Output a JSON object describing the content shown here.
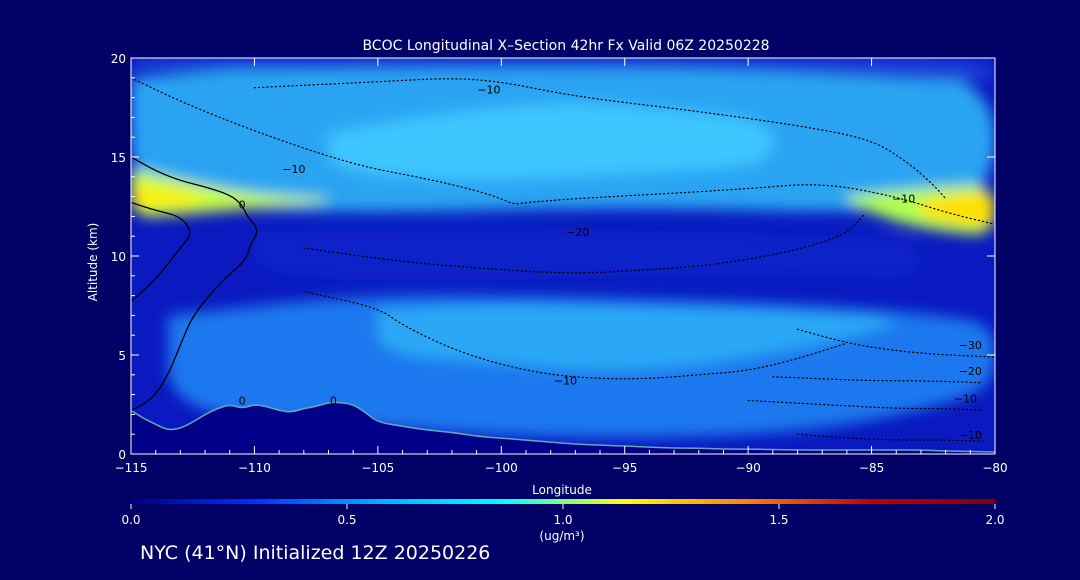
{
  "chart_data": {
    "type": "heatmap",
    "title": "BCOC Longitudinal X–Section 42hr  Fx Valid 06Z 20250228",
    "xlabel": "Longitude",
    "ylabel": "Altitude (km)",
    "xlim": [
      -115,
      -80
    ],
    "ylim": [
      0,
      20
    ],
    "x_ticks": [
      -115,
      -110,
      -105,
      -100,
      -95,
      -90,
      -85,
      -80
    ],
    "x_tick_labels": [
      "−115",
      "−110",
      "−105",
      "−100",
      "−95",
      "−90",
      "−85",
      "−80"
    ],
    "y_ticks": [
      0,
      5,
      10,
      15,
      20
    ],
    "y_tick_labels": [
      "0",
      "5",
      "10",
      "15",
      "20"
    ],
    "grid": false,
    "colorbar": {
      "min": 0.0,
      "max": 2.0,
      "ticks": [
        0.0,
        0.5,
        1.0,
        1.5,
        2.0
      ],
      "tick_labels": [
        "0.0",
        "0.5",
        "1.0",
        "1.5",
        "2.0"
      ],
      "unit_label": "(ug/m³)",
      "colors": [
        "#000080",
        "#0030ff",
        "#00b0ff",
        "#00ffff",
        "#ffff00",
        "#ff8000",
        "#c00000",
        "#800000"
      ]
    },
    "fill_regions": [
      {
        "name": "lower-layer",
        "value": 0.45,
        "color": "#1a78ee",
        "lon": [
          -113.5,
          -106,
          -100,
          -93,
          -87,
          -82,
          -80
        ],
        "alt_bottom": [
          2.0,
          1.5,
          0.9,
          0.8,
          1.2,
          2.5,
          3.5
        ],
        "alt_top": [
          7.0,
          8.0,
          8.0,
          7.8,
          7.5,
          7.0,
          6.5
        ]
      },
      {
        "name": "lower-core",
        "value": 0.65,
        "color": "#2aa8f6",
        "lon": [
          -105,
          -100,
          -97,
          -93,
          -88,
          -84
        ],
        "alt_bottom": [
          5.0,
          4.6,
          4.2,
          4.3,
          5.3,
          6.5
        ],
        "alt_top": [
          7.3,
          7.6,
          7.5,
          7.4,
          7.2,
          6.9
        ]
      },
      {
        "name": "mid-minimum",
        "value": 0.15,
        "color": "#0a22c8",
        "lon": [
          -110,
          -104,
          -99,
          -95,
          -91,
          -86,
          -83
        ],
        "alt_bottom": [
          9.0,
          8.7,
          8.8,
          9.0,
          9.0,
          8.9,
          8.8
        ],
        "alt_top": [
          11.2,
          11.3,
          11.4,
          11.3,
          11.2,
          11.0,
          10.8
        ]
      },
      {
        "name": "upper-layer",
        "value": 0.6,
        "color": "#2aa4f2",
        "lon": [
          -115,
          -110,
          -104,
          -98,
          -92,
          -86,
          -80
        ],
        "alt_bottom": [
          13.0,
          12.3,
          12.2,
          12.4,
          12.4,
          12.2,
          12.6
        ],
        "alt_top": [
          19.0,
          19.5,
          19.8,
          20.0,
          20.0,
          19.7,
          19.0
        ]
      },
      {
        "name": "upper-layer-light",
        "value": 0.75,
        "color": "#3cc6ff",
        "lon": [
          -107,
          -102,
          -97,
          -93,
          -89
        ],
        "alt_bottom": [
          14.3,
          13.8,
          14.0,
          14.3,
          14.6
        ],
        "alt_top": [
          16.2,
          17.3,
          17.8,
          17.4,
          16.8
        ]
      },
      {
        "name": "plume-west",
        "value": 0.95,
        "color": "#c8ff40",
        "lon": [
          -115,
          -113,
          -111,
          -109,
          -107
        ],
        "alt_bottom": [
          11.9,
          12.1,
          12.3,
          12.5,
          12.7
        ],
        "alt_top": [
          14.4,
          13.8,
          13.3,
          13.0,
          12.9
        ]
      },
      {
        "name": "plume-west-core",
        "value": 1.1,
        "color": "#ffee00",
        "lon": [
          -115,
          -113.5,
          -112
        ],
        "alt_bottom": [
          12.4,
          12.5,
          12.7
        ],
        "alt_top": [
          13.6,
          13.3,
          13.0
        ]
      },
      {
        "name": "plume-east",
        "value": 0.95,
        "color": "#b4ff50",
        "lon": [
          -86,
          -84,
          -82,
          -80
        ],
        "alt_bottom": [
          12.7,
          11.7,
          11.2,
          11.0
        ],
        "alt_top": [
          13.0,
          13.3,
          13.5,
          13.6
        ]
      },
      {
        "name": "plume-east-core",
        "value": 1.1,
        "color": "#ffe000",
        "lon": [
          -83,
          -81.5,
          -80
        ],
        "alt_bottom": [
          12.0,
          11.6,
          11.4
        ],
        "alt_top": [
          12.8,
          13.1,
          13.3
        ]
      },
      {
        "name": "top-band",
        "value": 0.2,
        "color": "#1a40d8",
        "lon": [
          -115,
          -100,
          -90,
          -80
        ],
        "alt_bottom": [
          19.3,
          19.5,
          19.4,
          18.6
        ],
        "alt_top": [
          20.0,
          20.0,
          20.0,
          20.0
        ]
      }
    ],
    "terrain": {
      "lon": [
        -115,
        -114.5,
        -114,
        -113.5,
        -113,
        -112.5,
        -112,
        -111.5,
        -111,
        -110.5,
        -110,
        -109.5,
        -109,
        -108.5,
        -108,
        -107.5,
        -107,
        -106.5,
        -106,
        -105.5,
        -105,
        -104,
        -103,
        -102,
        -101,
        -100,
        -99,
        -98,
        -97,
        -96,
        -95,
        -94,
        -93,
        -92,
        -91,
        -90,
        -89,
        -88,
        -87,
        -86,
        -85,
        -84,
        -83,
        -82,
        -81,
        -80
      ],
      "alt": [
        2.2,
        1.8,
        1.5,
        1.2,
        1.3,
        1.6,
        2.0,
        2.3,
        2.5,
        2.3,
        2.5,
        2.4,
        2.2,
        2.1,
        2.3,
        2.4,
        2.6,
        2.6,
        2.5,
        2.1,
        1.6,
        1.4,
        1.2,
        1.1,
        0.9,
        0.8,
        0.7,
        0.6,
        0.5,
        0.45,
        0.4,
        0.35,
        0.3,
        0.3,
        0.25,
        0.25,
        0.22,
        0.2,
        0.2,
        0.2,
        0.2,
        0.2,
        0.2,
        0.15,
        0.12,
        0.1
      ]
    },
    "temperature_contours": [
      {
        "label": "0",
        "style": "solid",
        "lon": [
          -115,
          -114,
          -113,
          -112,
          -111,
          -110.5,
          -110.3,
          -109.8,
          -110.2,
          -110.3,
          -110.8,
          -111.5,
          -112.5,
          -113.0,
          -113.5,
          -114,
          -114.5,
          -115
        ],
        "alt": [
          15.0,
          14.3,
          13.8,
          13.5,
          13.1,
          12.6,
          12.0,
          11.3,
          10.5,
          9.9,
          9.3,
          8.5,
          7.0,
          5.5,
          4.0,
          3.0,
          2.5,
          2.2
        ]
      },
      {
        "label": "0",
        "style": "solid",
        "lon": [
          -115,
          -114,
          -113,
          -112.5,
          -113.0,
          -114.0,
          -115
        ],
        "alt": [
          12.7,
          12.3,
          12.0,
          11.2,
          10.4,
          8.8,
          7.7
        ]
      },
      {
        "label": "−10",
        "style": "dotted",
        "lon": [
          -115,
          -113,
          -110,
          -106,
          -103,
          -101,
          -100,
          -99.5,
          -99,
          -97,
          -94,
          -90,
          -87,
          -84,
          -82,
          -80
        ],
        "alt": [
          19.0,
          17.8,
          16.3,
          14.6,
          13.9,
          13.3,
          12.9,
          12.6,
          12.7,
          12.9,
          13.1,
          13.4,
          13.7,
          13.0,
          12.2,
          11.6
        ]
      },
      {
        "label": "−10",
        "style": "dotted",
        "lon": [
          -110,
          -105,
          -102,
          -100,
          -98,
          -96,
          -92,
          -88,
          -85,
          -83.5,
          -82.5,
          -82.0
        ],
        "alt": [
          18.5,
          18.8,
          19.0,
          18.8,
          18.3,
          17.9,
          17.3,
          16.6,
          15.9,
          14.7,
          13.6,
          12.9
        ]
      },
      {
        "label": "−20",
        "style": "dotted",
        "lon": [
          -108,
          -104,
          -100,
          -97,
          -94,
          -91,
          -88,
          -86,
          -85.3
        ],
        "alt": [
          10.4,
          9.7,
          9.3,
          9.1,
          9.3,
          9.6,
          10.3,
          11.1,
          12.1
        ]
      },
      {
        "label": "−10",
        "style": "dotted",
        "lon": [
          -108,
          -105,
          -104,
          -102,
          -100,
          -98,
          -96,
          -94,
          -92,
          -90,
          -88,
          -86
        ],
        "alt": [
          8.2,
          7.4,
          6.5,
          5.3,
          4.5,
          4.0,
          3.8,
          3.8,
          4.0,
          4.2,
          4.8,
          5.6
        ]
      },
      {
        "label": "−30",
        "style": "dotted",
        "lon": [
          -88,
          -86,
          -84,
          -82,
          -80
        ],
        "alt": [
          6.3,
          5.6,
          5.2,
          5.0,
          4.9
        ]
      },
      {
        "label": "−20",
        "style": "dotted",
        "lon": [
          -89,
          -87,
          -85,
          -83,
          -80.5
        ],
        "alt": [
          3.9,
          3.8,
          3.7,
          3.7,
          3.6
        ]
      },
      {
        "label": "−10",
        "style": "dotted",
        "lon": [
          -90,
          -87,
          -84,
          -82,
          -80.5
        ],
        "alt": [
          2.7,
          2.5,
          2.3,
          2.3,
          2.2
        ]
      },
      {
        "label": "−10",
        "style": "dotted",
        "lon": [
          -88,
          -86,
          -84,
          -82,
          -80.5
        ],
        "alt": [
          1.0,
          0.8,
          0.7,
          0.7,
          0.65
        ]
      }
    ],
    "contour_labels": [
      {
        "text": "−10",
        "lon": -100.5,
        "alt": 18.2
      },
      {
        "text": "−10",
        "lon": -108.4,
        "alt": 14.2
      },
      {
        "text": "−10",
        "lon": -83.7,
        "alt": 12.7
      },
      {
        "text": "−20",
        "lon": -96.9,
        "alt": 11.0
      },
      {
        "text": "−10",
        "lon": -97.4,
        "alt": 3.5
      },
      {
        "text": "−30",
        "lon": -81.0,
        "alt": 5.3
      },
      {
        "text": "−20",
        "lon": -81.0,
        "alt": 4.0
      },
      {
        "text": "−10",
        "lon": -81.2,
        "alt": 2.6
      },
      {
        "text": "−10",
        "lon": -81.0,
        "alt": 0.75
      },
      {
        "text": "0",
        "lon": -110.5,
        "alt": 12.4
      },
      {
        "text": "0",
        "lon": -110.5,
        "alt": 2.5
      },
      {
        "text": "0",
        "lon": -106.8,
        "alt": 2.5
      }
    ]
  },
  "caption": "NYC (41°N) Initialized 12Z 20250226"
}
